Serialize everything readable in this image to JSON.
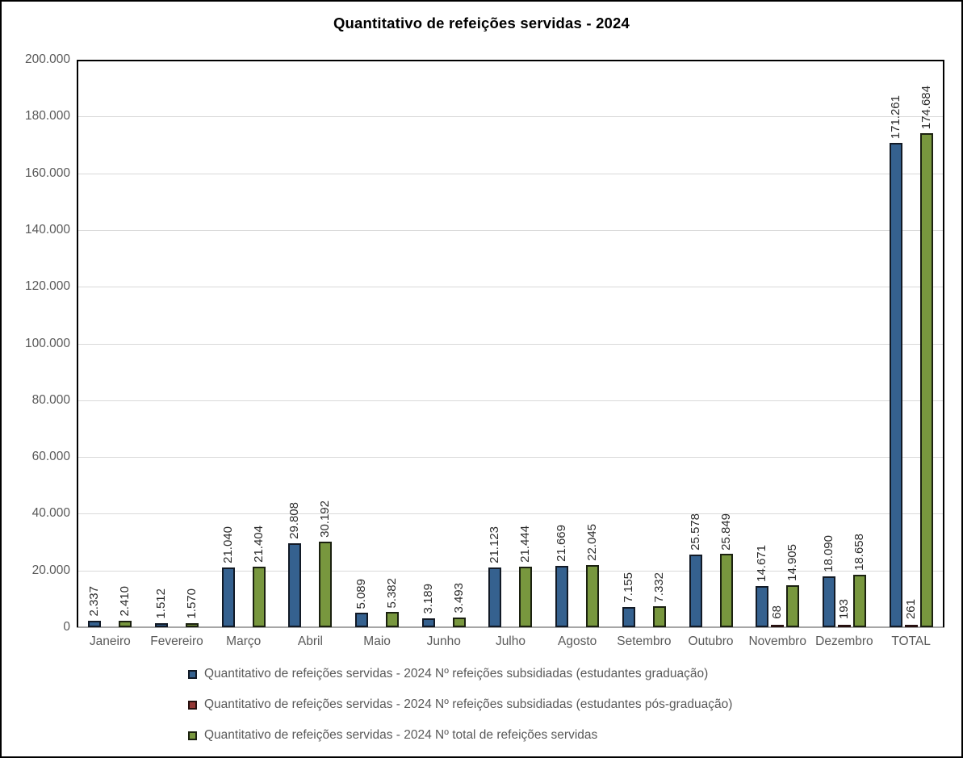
{
  "title": "Quantitativo de refeições servidas - 2024",
  "colors": {
    "grid": "#d9d9d9",
    "axis_text": "#595959",
    "data_label_text": "#2b2b2b",
    "plot_border": "#000000",
    "baseline": "#a6a6a6",
    "series_blue": "#35618F",
    "series_red": "#943735",
    "series_green": "#78973E"
  },
  "chart_data": {
    "type": "bar",
    "title": "Quantitativo de refeições servidas - 2024",
    "categories": [
      "Janeiro",
      "Fevereiro",
      "Março",
      "Abril",
      "Maio",
      "Junho",
      "Julho",
      "Agosto",
      "Setembro",
      "Outubro",
      "Novembro",
      "Dezembro",
      "TOTAL"
    ],
    "series": [
      {
        "key": "graduacao",
        "name": "Quantitativo de refeições servidas - 2024 Nº refeições subsidiadas (estudantes graduação)",
        "color": "#35618F",
        "border_color": "#121a26",
        "values": [
          2337,
          1512,
          21040,
          29808,
          5089,
          3189,
          21123,
          21669,
          7155,
          25578,
          14671,
          18090,
          171261
        ],
        "labels": [
          "2.337",
          "1.512",
          "21.040",
          "29.808",
          "5.089",
          "3.189",
          "21.123",
          "21.669",
          "7.155",
          "25.578",
          "14.671",
          "18.090",
          "171.261"
        ]
      },
      {
        "key": "pos_graduacao",
        "name": "Quantitativo de refeições servidas - 2024 Nº refeições subsidiadas (estudantes pós-graduação)",
        "color": "#943735",
        "border_color": "#26100f",
        "values": [
          0,
          0,
          0,
          0,
          0,
          0,
          0,
          0,
          0,
          0,
          68,
          193,
          261
        ],
        "labels": [
          "",
          "",
          "",
          "",
          "",
          "",
          "",
          "",
          "",
          "",
          "68",
          "193",
          "261"
        ]
      },
      {
        "key": "total",
        "name": "Quantitativo de refeições servidas - 2024 Nº total de refeições servidas",
        "color": "#78973E",
        "border_color": "#1b2110",
        "values": [
          2410,
          1570,
          21404,
          30192,
          5382,
          3493,
          21444,
          22045,
          7332,
          25849,
          14905,
          18658,
          174684
        ],
        "labels": [
          "2.410",
          "1.570",
          "21.404",
          "30.192",
          "5.382",
          "3.493",
          "21.444",
          "22.045",
          "7.332",
          "25.849",
          "14.905",
          "18.658",
          "174.684"
        ]
      }
    ],
    "ylim": [
      0,
      200000
    ],
    "ytick_step": 20000,
    "yticks": [
      "0",
      "20.000",
      "40.000",
      "60.000",
      "80.000",
      "100.000",
      "120.000",
      "140.000",
      "160.000",
      "180.000",
      "200.000"
    ],
    "grid": true,
    "legend_position": "bottom"
  }
}
